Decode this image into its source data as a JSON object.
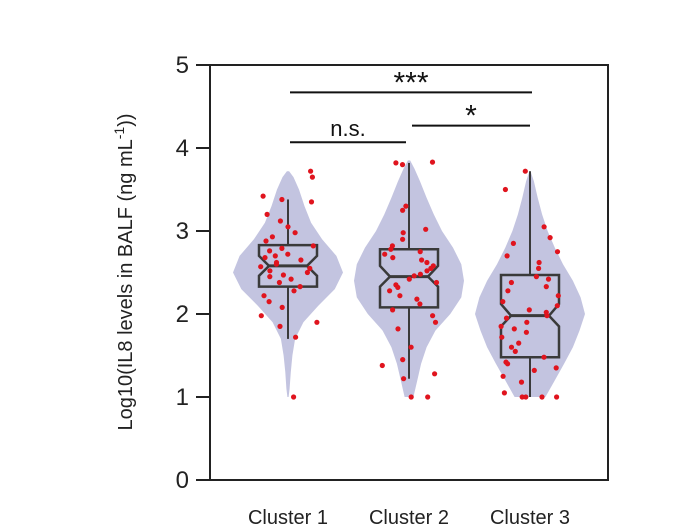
{
  "chart_data": {
    "type": "violin-box",
    "ylabel": "Log10(IL8 levels in BALF (ng mL",
    "ylabel_sup": "-1",
    "ylabel_close": "))",
    "ylim": [
      0,
      5
    ],
    "yticks": [
      "0",
      "1",
      "2",
      "3",
      "4",
      "5"
    ],
    "categories": [
      "Cluster 1",
      "Cluster 2",
      "Cluster 3"
    ],
    "colors": {
      "violin": "#c3c4e0",
      "box_stroke": "#3a3a3a",
      "point": "#e0141e",
      "axis": "#222222"
    },
    "series": [
      {
        "violin": [
          [
            1.0,
            0.01
          ],
          [
            1.1,
            0.03
          ],
          [
            1.3,
            0.05
          ],
          [
            1.5,
            0.08
          ],
          [
            1.7,
            0.13
          ],
          [
            1.9,
            0.28
          ],
          [
            2.1,
            0.55
          ],
          [
            2.3,
            0.85
          ],
          [
            2.5,
            1.0
          ],
          [
            2.7,
            0.88
          ],
          [
            2.9,
            0.62
          ],
          [
            3.1,
            0.42
          ],
          [
            3.3,
            0.3
          ],
          [
            3.5,
            0.2
          ],
          [
            3.65,
            0.1
          ],
          [
            3.72,
            0.02
          ]
        ],
        "box": {
          "whislo": 1.7,
          "q1": 2.33,
          "med": 2.58,
          "q3": 2.83,
          "whishi": 3.38,
          "notch_lo": 2.46,
          "notch_hi": 2.7
        },
        "points": [
          3.72,
          3.65,
          3.42,
          3.38,
          3.35,
          3.2,
          3.12,
          3.05,
          2.98,
          2.93,
          2.88,
          2.82,
          2.79,
          2.76,
          2.72,
          2.7,
          2.68,
          2.65,
          2.62,
          2.6,
          2.57,
          2.55,
          2.52,
          2.5,
          2.47,
          2.45,
          2.42,
          2.38,
          2.33,
          2.28,
          2.22,
          2.15,
          2.08,
          1.98,
          1.9,
          1.85,
          1.72,
          1.0
        ]
      },
      {
        "violin": [
          [
            1.0,
            0.08
          ],
          [
            1.2,
            0.15
          ],
          [
            1.4,
            0.22
          ],
          [
            1.6,
            0.32
          ],
          [
            1.8,
            0.48
          ],
          [
            2.0,
            0.75
          ],
          [
            2.2,
            0.95
          ],
          [
            2.4,
            1.0
          ],
          [
            2.6,
            0.95
          ],
          [
            2.8,
            0.8
          ],
          [
            3.0,
            0.6
          ],
          [
            3.2,
            0.45
          ],
          [
            3.4,
            0.32
          ],
          [
            3.6,
            0.2
          ],
          [
            3.75,
            0.1
          ],
          [
            3.85,
            0.02
          ]
        ],
        "box": {
          "whislo": 1.22,
          "q1": 2.08,
          "med": 2.45,
          "q3": 2.78,
          "whishi": 3.82,
          "notch_lo": 2.33,
          "notch_hi": 2.58
        },
        "points": [
          3.83,
          3.82,
          3.8,
          3.3,
          3.25,
          3.02,
          2.98,
          2.9,
          2.82,
          2.78,
          2.75,
          2.72,
          2.68,
          2.65,
          2.62,
          2.58,
          2.55,
          2.52,
          2.48,
          2.46,
          2.42,
          2.38,
          2.35,
          2.32,
          2.28,
          2.22,
          2.18,
          2.12,
          2.05,
          1.98,
          1.9,
          1.82,
          1.6,
          1.45,
          1.38,
          1.28,
          1.22,
          1.0,
          1.0
        ]
      },
      {
        "violin": [
          [
            1.0,
            0.28
          ],
          [
            1.2,
            0.45
          ],
          [
            1.4,
            0.62
          ],
          [
            1.6,
            0.78
          ],
          [
            1.8,
            0.9
          ],
          [
            2.0,
            1.0
          ],
          [
            2.2,
            0.92
          ],
          [
            2.4,
            0.78
          ],
          [
            2.6,
            0.6
          ],
          [
            2.8,
            0.45
          ],
          [
            3.0,
            0.32
          ],
          [
            3.2,
            0.22
          ],
          [
            3.4,
            0.14
          ],
          [
            3.6,
            0.07
          ],
          [
            3.72,
            0.01
          ]
        ],
        "box": {
          "whislo": 1.0,
          "q1": 1.48,
          "med": 1.98,
          "q3": 2.47,
          "whishi": 3.72,
          "notch_lo": 1.85,
          "notch_hi": 2.12
        },
        "points": [
          3.72,
          3.5,
          3.05,
          2.92,
          2.85,
          2.75,
          2.7,
          2.62,
          2.55,
          2.45,
          2.42,
          2.38,
          2.33,
          2.28,
          2.22,
          2.15,
          2.1,
          2.05,
          2.02,
          1.98,
          1.95,
          1.9,
          1.85,
          1.82,
          1.78,
          1.72,
          1.65,
          1.6,
          1.55,
          1.48,
          1.42,
          1.4,
          1.35,
          1.32,
          1.25,
          1.18,
          1.05,
          1.0,
          1.0,
          1.0,
          1.0
        ]
      }
    ],
    "significance": [
      {
        "from": 0,
        "to": 2,
        "y": 4.67,
        "label": "***"
      },
      {
        "from": 0,
        "to": 1,
        "y": 4.07,
        "label": "n.s."
      },
      {
        "from": 1,
        "to": 2,
        "y": 4.27,
        "label": "*"
      }
    ]
  }
}
